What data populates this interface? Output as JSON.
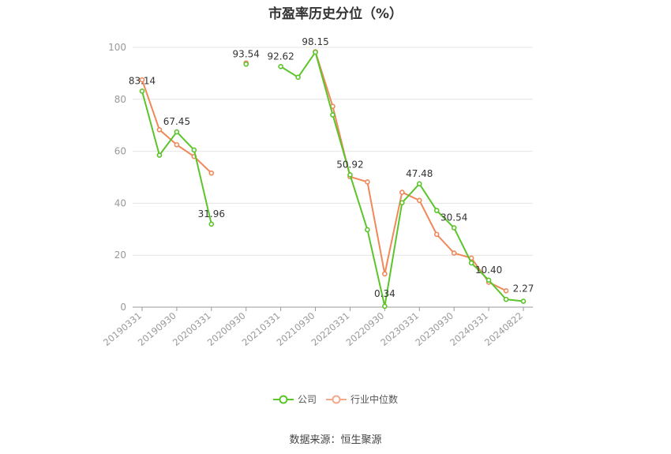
{
  "chart_data": {
    "type": "line",
    "title": "市盈率历史分位（%）",
    "xlabel": "",
    "ylabel": "",
    "ylim": [
      0,
      100
    ],
    "yticks": [
      0,
      20,
      40,
      60,
      80,
      100
    ],
    "grid": true,
    "legend_position": "bottom",
    "x": [
      "20190331",
      "20190630",
      "20190930",
      "20191231",
      "20200331",
      "20200630",
      "20200930",
      "20201231",
      "20210331",
      "20210630",
      "20210930",
      "20211231",
      "20220331",
      "20220630",
      "20220930",
      "20221231",
      "20230331",
      "20230630",
      "20230930",
      "20231231",
      "20240331",
      "20240630",
      "20240822"
    ],
    "x_tick_labels": [
      "20190331",
      "20190930",
      "20200331",
      "20200930",
      "20210331",
      "20210930",
      "20220331",
      "20220930",
      "20230331",
      "20230930",
      "20240331",
      "20240822"
    ],
    "series": [
      {
        "name": "公司",
        "color": "#5cc42b",
        "values": [
          83.14,
          58.5,
          67.45,
          60.5,
          31.96,
          null,
          93.54,
          null,
          92.62,
          88.5,
          98.15,
          74.0,
          50.92,
          29.8,
          0.34,
          40.2,
          47.48,
          37.2,
          30.54,
          17.0,
          10.4,
          3.0,
          2.27
        ],
        "labels": {
          "0": "83.14",
          "2": "67.45",
          "4": "31.96",
          "6": "93.54",
          "8": "92.62",
          "10": "98.15",
          "12": "50.92",
          "14": "0.34",
          "16": "47.48",
          "18": "30.54",
          "20": "10.40",
          "22": "2.27"
        }
      },
      {
        "name": "行业中位数",
        "color": "#f0885a",
        "values": [
          87.5,
          68.3,
          62.5,
          58.0,
          51.6,
          null,
          94.0,
          null,
          null,
          null,
          98.3,
          77.3,
          50.2,
          48.2,
          12.8,
          44.2,
          41.1,
          28.0,
          20.8,
          18.9,
          9.6,
          6.3,
          null
        ]
      }
    ]
  },
  "legend": [
    {
      "label": "公司",
      "color": "#5cc42b"
    },
    {
      "label": "行业中位数",
      "color": "#f4a889"
    }
  ],
  "source": "数据来源：恒生聚源"
}
